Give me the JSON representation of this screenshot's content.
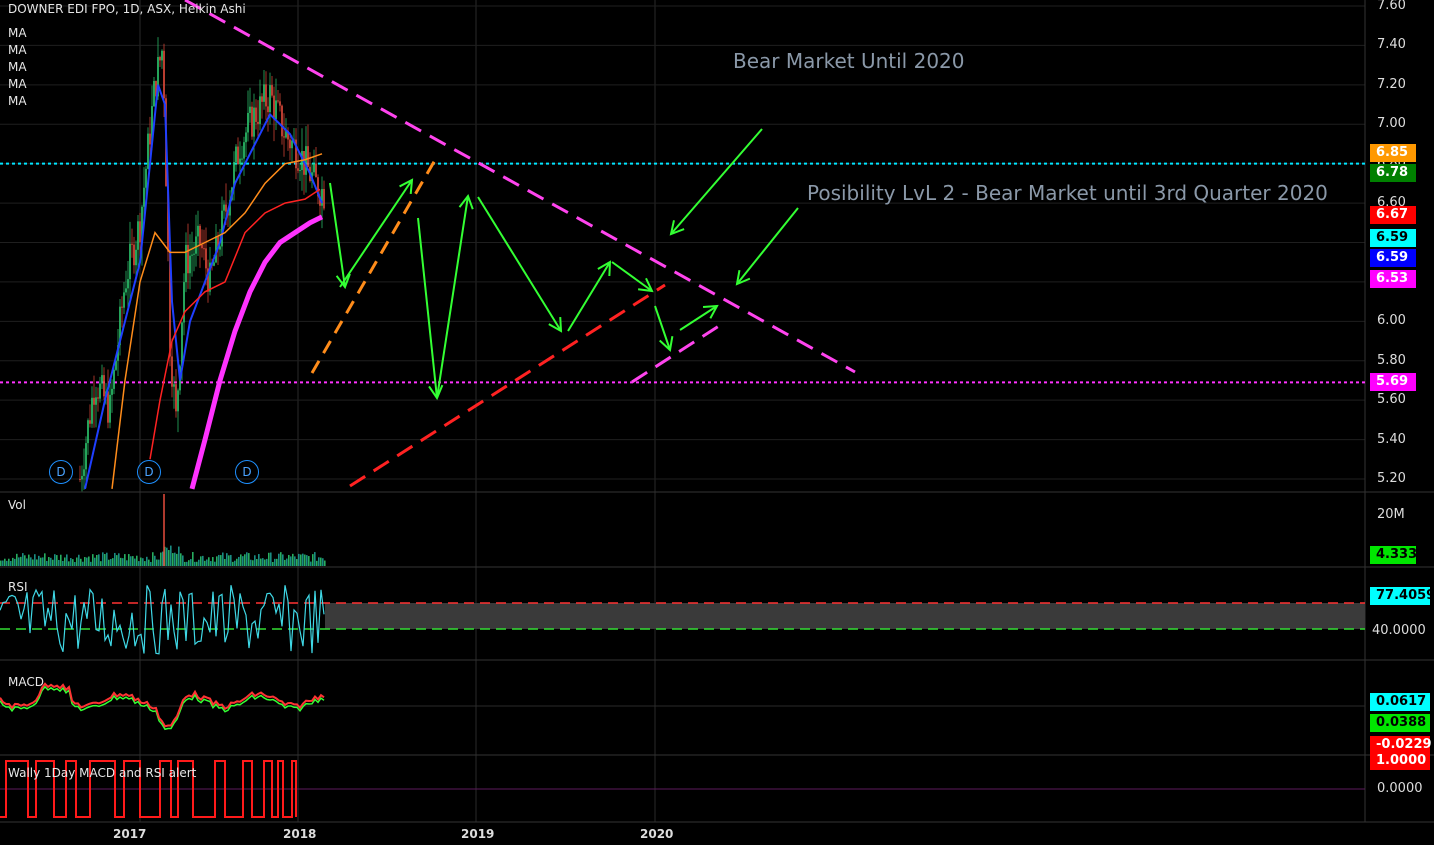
{
  "header": {
    "title": "DOWNER EDI FPO, 1D, ASX, Heikin Ashi",
    "ma_labels": [
      "MA",
      "MA",
      "MA",
      "MA",
      "MA"
    ]
  },
  "panes": {
    "vol": "Vol",
    "rsi": "RSI",
    "macd": "MACD",
    "wally": "Wally 1Day MACD and RSI alert"
  },
  "annotations": {
    "a1": "Bear Market Until 2020",
    "a2": "Posibility LvL 2 - Bear Market until 3rd Quarter 2020"
  },
  "dividend_badge": "D",
  "chart_data": {
    "type": "candlestick",
    "title": "DOWNER EDI FPO, 1D, ASX, Heikin Ashi",
    "price_axis": {
      "range": [
        5.15,
        7.6
      ],
      "ticks": [
        "7.60",
        "7.40",
        "7.20",
        "7.00",
        "6.80",
        "6.60",
        "6.40",
        "6.20",
        "6.00",
        "5.80",
        "5.60",
        "5.40",
        "5.20"
      ]
    },
    "x_ticks": [
      "2017",
      "2018",
      "2019",
      "2020"
    ],
    "price_tags": [
      {
        "value": "6.85",
        "bg": "#ff9800",
        "fg": "#ffffff"
      },
      {
        "value": "6.78",
        "bg": "#008000",
        "fg": "#ffffff"
      },
      {
        "value": "6.67",
        "bg": "#ff0000",
        "fg": "#ffffff"
      },
      {
        "value": "6.59",
        "bg": "#00ffff",
        "fg": "#000000"
      },
      {
        "value": "6.59",
        "bg": "#0000ff",
        "fg": "#ffffff"
      },
      {
        "value": "6.53",
        "bg": "#ff00ff",
        "fg": "#ffffff"
      },
      {
        "value": "5.69",
        "bg": "#ff00ff",
        "fg": "#ffffff"
      }
    ],
    "horizontal_levels": [
      {
        "value": 6.8,
        "color": "#00e5ff"
      },
      {
        "value": 5.69,
        "color": "#ff33ff"
      }
    ],
    "volume": {
      "axis_ticks": [
        "20M"
      ],
      "last_tag": "4.333M",
      "last_tag_bg": "#00e600"
    },
    "rsi": {
      "last_tag": "77.4059",
      "last_tag_bg": "#00ffff",
      "axis_tick": "40.0000",
      "upper": 70,
      "lower": 30
    },
    "macd": {
      "tags": [
        {
          "value": "0.0617",
          "bg": "#00ffff",
          "fg": "#000000"
        },
        {
          "value": "0.0388",
          "bg": "#00e600",
          "fg": "#000000"
        },
        {
          "value": "-0.0229",
          "bg": "#ff0000",
          "fg": "#ffffff"
        }
      ]
    },
    "wally": {
      "tags": [
        {
          "value": "1.0000",
          "bg": "#ff0000",
          "fg": "#ffffff"
        }
      ],
      "axis_tick": "0.0000"
    },
    "colors": {
      "up": "#2ecc71",
      "down": "#e74c3c",
      "bear_line": "#ff44ee",
      "support_line": "#ff2222",
      "orange_line": "#ff8c1a",
      "arrow": "#33ff33"
    }
  }
}
